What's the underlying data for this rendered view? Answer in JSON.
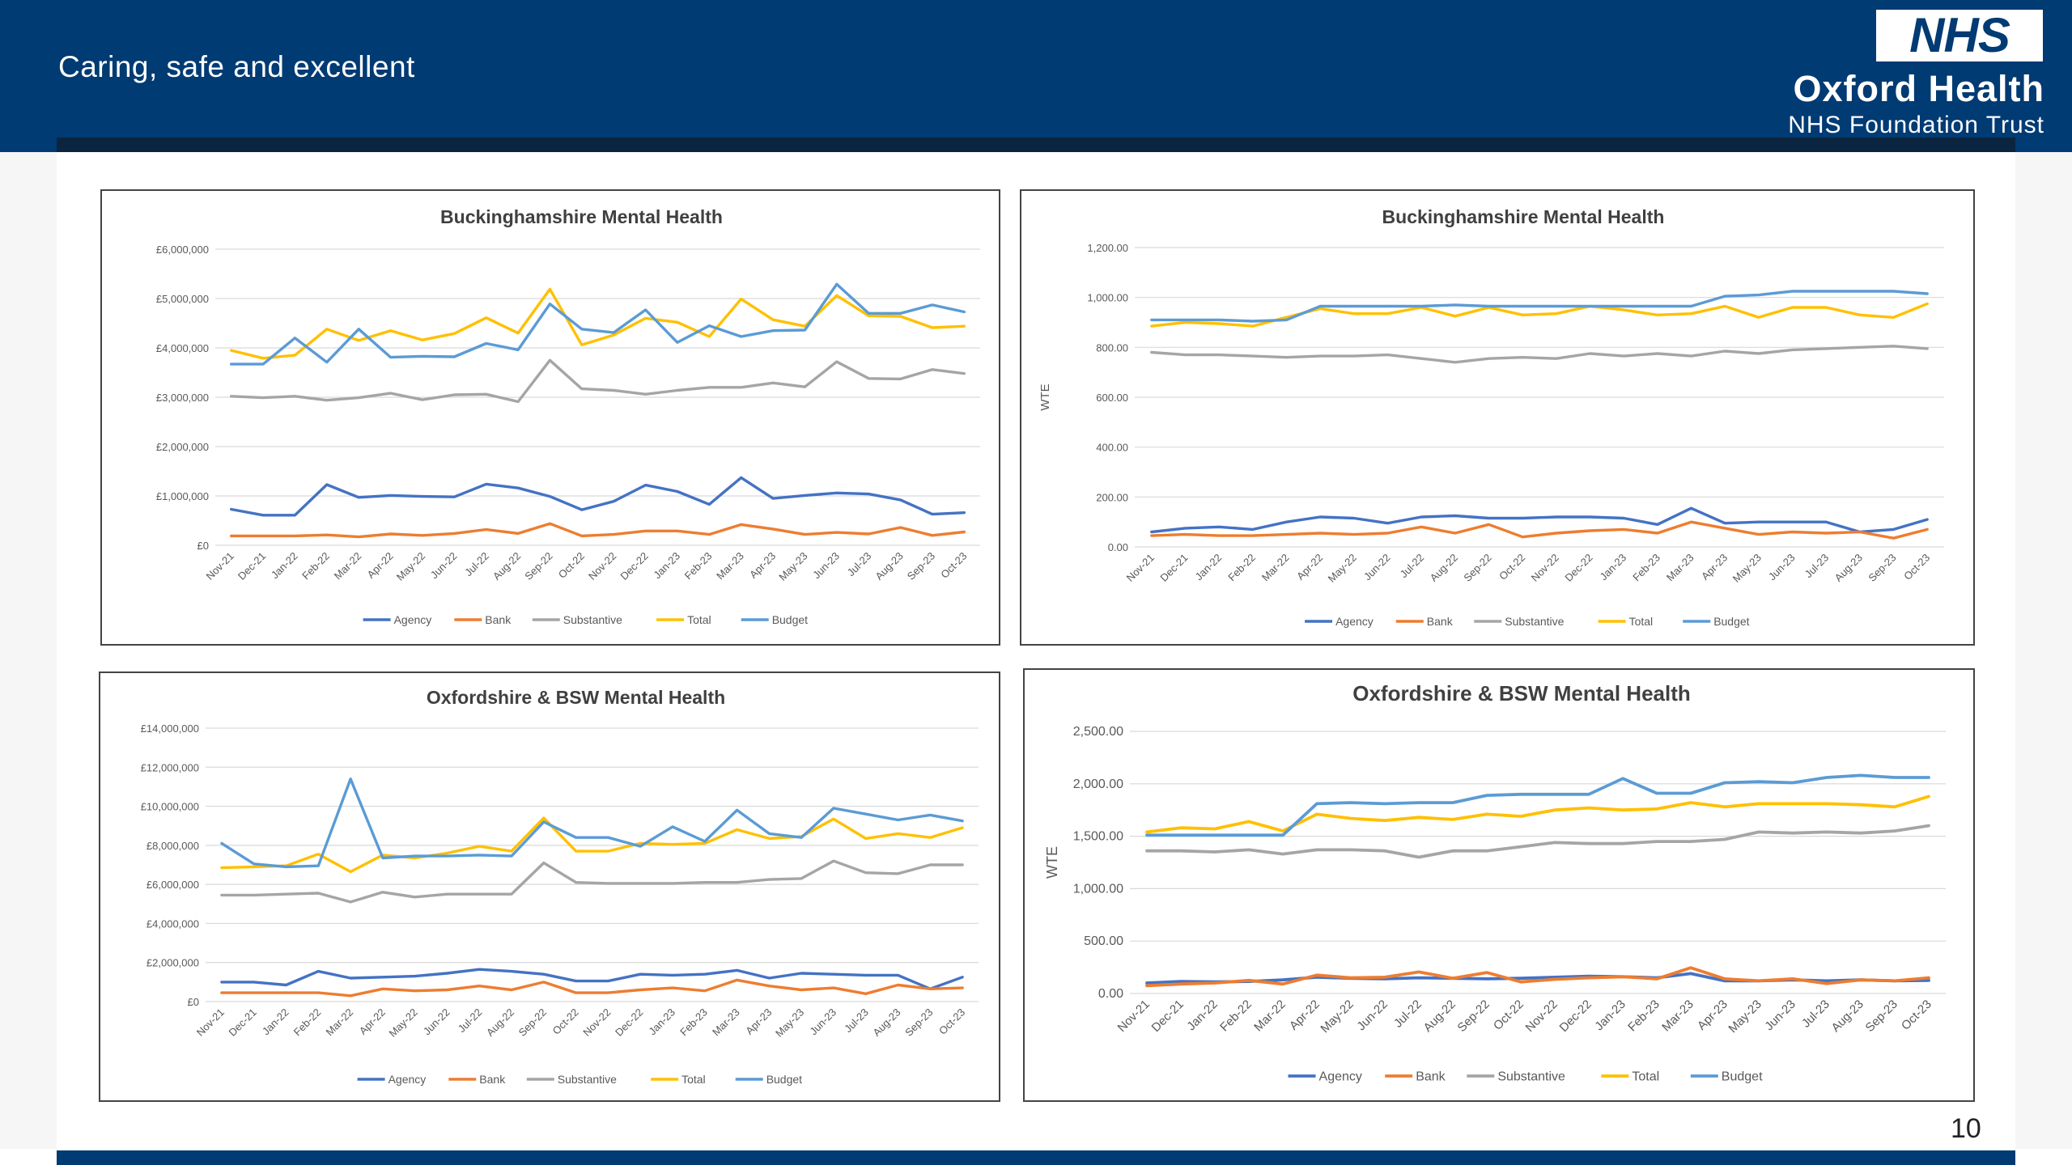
{
  "header": {
    "tagline": "Caring, safe and excellent",
    "logo_text": "NHS",
    "org_name": "Oxford Health",
    "org_sub": "NHS Foundation Trust"
  },
  "page_number": "10",
  "colors": {
    "header_bg": "#003b73",
    "Agency": "#4472c4",
    "Bank": "#ed7d31",
    "Substantive": "#a5a5a5",
    "Total": "#ffc000",
    "Budget": "#5b9bd5"
  },
  "chart_data": [
    {
      "type": "line",
      "title": "Buckinghamshire Mental Health",
      "ylabel": "",
      "xlabel": "",
      "ylim": [
        0,
        6000000
      ],
      "yticks": [
        "£0",
        "£1,000,000",
        "£2,000,000",
        "£3,000,000",
        "£4,000,000",
        "£5,000,000",
        "£6,000,000"
      ],
      "legend_position": "bottom",
      "categories": [
        "Nov-21",
        "Dec-21",
        "Jan-22",
        "Feb-22",
        "Mar-22",
        "Apr-22",
        "May-22",
        "Jun-22",
        "Jul-22",
        "Aug-22",
        "Sep-22",
        "Oct-22",
        "Nov-22",
        "Dec-22",
        "Jan-23",
        "Feb-23",
        "Mar-23",
        "Apr-23",
        "May-23",
        "Jun-23",
        "Jul-23",
        "Aug-23",
        "Sep-23",
        "Oct-23"
      ],
      "series": [
        {
          "name": "Agency",
          "values": [
            730000,
            610000,
            610000,
            1230000,
            970000,
            1010000,
            990000,
            980000,
            1240000,
            1160000,
            990000,
            720000,
            890000,
            1220000,
            1090000,
            830000,
            1370000,
            950000,
            1010000,
            1060000,
            1040000,
            920000,
            630000,
            660000
          ]
        },
        {
          "name": "Bank",
          "values": [
            190000,
            190000,
            190000,
            210000,
            170000,
            230000,
            200000,
            240000,
            320000,
            240000,
            440000,
            190000,
            220000,
            290000,
            290000,
            220000,
            420000,
            330000,
            220000,
            260000,
            230000,
            360000,
            200000,
            270000
          ]
        },
        {
          "name": "Substantive",
          "values": [
            3020000,
            2990000,
            3020000,
            2940000,
            2990000,
            3080000,
            2950000,
            3050000,
            3060000,
            2910000,
            3750000,
            3170000,
            3140000,
            3060000,
            3140000,
            3200000,
            3200000,
            3290000,
            3210000,
            3720000,
            3380000,
            3370000,
            3560000,
            3480000
          ]
        },
        {
          "name": "Total",
          "values": [
            3950000,
            3790000,
            3850000,
            4380000,
            4150000,
            4350000,
            4160000,
            4290000,
            4610000,
            4300000,
            5190000,
            4060000,
            4260000,
            4600000,
            4520000,
            4230000,
            4990000,
            4570000,
            4440000,
            5060000,
            4650000,
            4640000,
            4410000,
            4440000
          ]
        },
        {
          "name": "Budget",
          "values": [
            3670000,
            3670000,
            4200000,
            3710000,
            4380000,
            3810000,
            3830000,
            3820000,
            4090000,
            3960000,
            4890000,
            4380000,
            4310000,
            4770000,
            4110000,
            4450000,
            4230000,
            4350000,
            4360000,
            5290000,
            4700000,
            4700000,
            4870000,
            4730000
          ]
        }
      ]
    },
    {
      "type": "line",
      "title": "Buckinghamshire Mental Health",
      "ylabel": "WTE",
      "xlabel": "",
      "ylim": [
        0,
        1200
      ],
      "yticks": [
        "0.00",
        "200.00",
        "400.00",
        "600.00",
        "800.00",
        "1,000.00",
        "1,200.00"
      ],
      "legend_position": "bottom",
      "categories": [
        "Nov-21",
        "Dec-21",
        "Jan-22",
        "Feb-22",
        "Mar-22",
        "Apr-22",
        "May-22",
        "Jun-22",
        "Jul-22",
        "Aug-22",
        "Sep-22",
        "Oct-22",
        "Nov-22",
        "Dec-22",
        "Jan-23",
        "Feb-23",
        "Mar-23",
        "Apr-23",
        "May-23",
        "Jun-23",
        "Jul-23",
        "Aug-23",
        "Sep-23",
        "Oct-23"
      ],
      "series": [
        {
          "name": "Agency",
          "values": [
            60,
            75,
            80,
            70,
            100,
            120,
            115,
            95,
            120,
            125,
            115,
            115,
            120,
            120,
            115,
            90,
            155,
            95,
            100,
            100,
            100,
            60,
            70,
            110
          ]
        },
        {
          "name": "Bank",
          "values": [
            45,
            50,
            45,
            45,
            50,
            55,
            50,
            55,
            80,
            55,
            90,
            40,
            55,
            65,
            70,
            55,
            100,
            75,
            50,
            60,
            55,
            60,
            35,
            70
          ]
        },
        {
          "name": "Substantive",
          "values": [
            780,
            770,
            770,
            765,
            760,
            765,
            765,
            770,
            755,
            740,
            755,
            760,
            755,
            775,
            765,
            775,
            765,
            785,
            775,
            790,
            795,
            800,
            805,
            795
          ]
        },
        {
          "name": "Total",
          "values": [
            885,
            900,
            895,
            885,
            920,
            955,
            935,
            935,
            960,
            925,
            960,
            930,
            935,
            965,
            950,
            930,
            935,
            965,
            920,
            960,
            960,
            930,
            920,
            975
          ]
        },
        {
          "name": "Budget",
          "values": [
            910,
            910,
            910,
            905,
            910,
            965,
            965,
            965,
            965,
            970,
            965,
            965,
            965,
            965,
            965,
            965,
            965,
            1005,
            1010,
            1025,
            1025,
            1025,
            1025,
            1015
          ]
        }
      ]
    },
    {
      "type": "line",
      "title": "Oxfordshire & BSW Mental Health",
      "ylabel": "",
      "xlabel": "",
      "ylim": [
        0,
        14000000
      ],
      "yticks": [
        "£0",
        "£2,000,000",
        "£4,000,000",
        "£6,000,000",
        "£8,000,000",
        "£10,000,000",
        "£12,000,000",
        "£14,000,000"
      ],
      "legend_position": "bottom",
      "categories": [
        "Nov-21",
        "Dec-21",
        "Jan-22",
        "Feb-22",
        "Mar-22",
        "Apr-22",
        "May-22",
        "Jun-22",
        "Jul-22",
        "Aug-22",
        "Sep-22",
        "Oct-22",
        "Nov-22",
        "Dec-22",
        "Jan-23",
        "Feb-23",
        "Mar-23",
        "Apr-23",
        "May-23",
        "Jun-23",
        "Jul-23",
        "Aug-23",
        "Sep-23",
        "Oct-23"
      ],
      "series": [
        {
          "name": "Agency",
          "values": [
            1000000,
            1000000,
            850000,
            1550000,
            1200000,
            1250000,
            1300000,
            1450000,
            1650000,
            1550000,
            1400000,
            1050000,
            1050000,
            1400000,
            1350000,
            1400000,
            1600000,
            1200000,
            1450000,
            1400000,
            1350000,
            1350000,
            650000,
            1250000
          ]
        },
        {
          "name": "Bank",
          "values": [
            450000,
            450000,
            450000,
            450000,
            300000,
            650000,
            550000,
            600000,
            800000,
            600000,
            1000000,
            450000,
            450000,
            600000,
            700000,
            550000,
            1100000,
            800000,
            600000,
            700000,
            400000,
            850000,
            650000,
            700000
          ]
        },
        {
          "name": "Substantive",
          "values": [
            5450000,
            5450000,
            5500000,
            5550000,
            5100000,
            5600000,
            5350000,
            5500000,
            5500000,
            5500000,
            7100000,
            6100000,
            6050000,
            6050000,
            6050000,
            6100000,
            6100000,
            6250000,
            6300000,
            7200000,
            6600000,
            6550000,
            7000000,
            7000000
          ]
        },
        {
          "name": "Total",
          "values": [
            6850000,
            6900000,
            6950000,
            7550000,
            6650000,
            7500000,
            7350000,
            7600000,
            7950000,
            7700000,
            9400000,
            7700000,
            7700000,
            8100000,
            8050000,
            8100000,
            8800000,
            8350000,
            8450000,
            9350000,
            8350000,
            8600000,
            8400000,
            8900000
          ]
        },
        {
          "name": "Budget",
          "values": [
            8100000,
            7050000,
            6900000,
            6950000,
            11400000,
            7350000,
            7450000,
            7450000,
            7500000,
            7450000,
            9200000,
            8400000,
            8400000,
            7950000,
            8950000,
            8200000,
            9800000,
            8600000,
            8400000,
            9900000,
            9600000,
            9300000,
            9550000,
            9250000
          ]
        }
      ]
    },
    {
      "type": "line",
      "title": "Oxfordshire & BSW Mental Health",
      "ylabel": "WTE",
      "xlabel": "",
      "ylim": [
        0,
        2500
      ],
      "yticks": [
        "0.00",
        "500.00",
        "1,000.00",
        "1,500.00",
        "2,000.00",
        "2,500.00"
      ],
      "legend_position": "bottom",
      "categories": [
        "Nov-21",
        "Dec-21",
        "Jan-22",
        "Feb-22",
        "Mar-22",
        "Apr-22",
        "May-22",
        "Jun-22",
        "Jul-22",
        "Aug-22",
        "Sep-22",
        "Oct-22",
        "Nov-22",
        "Dec-22",
        "Jan-23",
        "Feb-23",
        "Mar-23",
        "Apr-23",
        "May-23",
        "Jun-23",
        "Jul-23",
        "Aug-23",
        "Sep-23",
        "Oct-23"
      ],
      "series": [
        {
          "name": "Agency",
          "values": [
            100,
            115,
            110,
            115,
            130,
            155,
            145,
            140,
            150,
            145,
            140,
            145,
            155,
            165,
            160,
            150,
            190,
            120,
            120,
            130,
            120,
            130,
            120,
            125
          ]
        },
        {
          "name": "Bank",
          "values": [
            75,
            90,
            100,
            125,
            90,
            175,
            150,
            155,
            205,
            145,
            200,
            110,
            135,
            150,
            160,
            140,
            245,
            140,
            120,
            140,
            95,
            130,
            120,
            150
          ]
        },
        {
          "name": "Substantive",
          "values": [
            1360,
            1360,
            1350,
            1370,
            1330,
            1370,
            1370,
            1360,
            1300,
            1360,
            1360,
            1400,
            1440,
            1430,
            1430,
            1450,
            1450,
            1470,
            1540,
            1530,
            1540,
            1530,
            1550,
            1600
          ]
        },
        {
          "name": "Total",
          "values": [
            1540,
            1580,
            1570,
            1640,
            1550,
            1710,
            1670,
            1650,
            1680,
            1660,
            1710,
            1690,
            1750,
            1770,
            1750,
            1760,
            1820,
            1780,
            1810,
            1810,
            1810,
            1800,
            1780,
            1880
          ]
        },
        {
          "name": "Budget",
          "values": [
            1510,
            1510,
            1510,
            1510,
            1510,
            1810,
            1820,
            1810,
            1820,
            1820,
            1890,
            1900,
            1900,
            1900,
            2050,
            1910,
            1910,
            2010,
            2020,
            2010,
            2060,
            2080,
            2060,
            2060
          ]
        }
      ]
    }
  ]
}
